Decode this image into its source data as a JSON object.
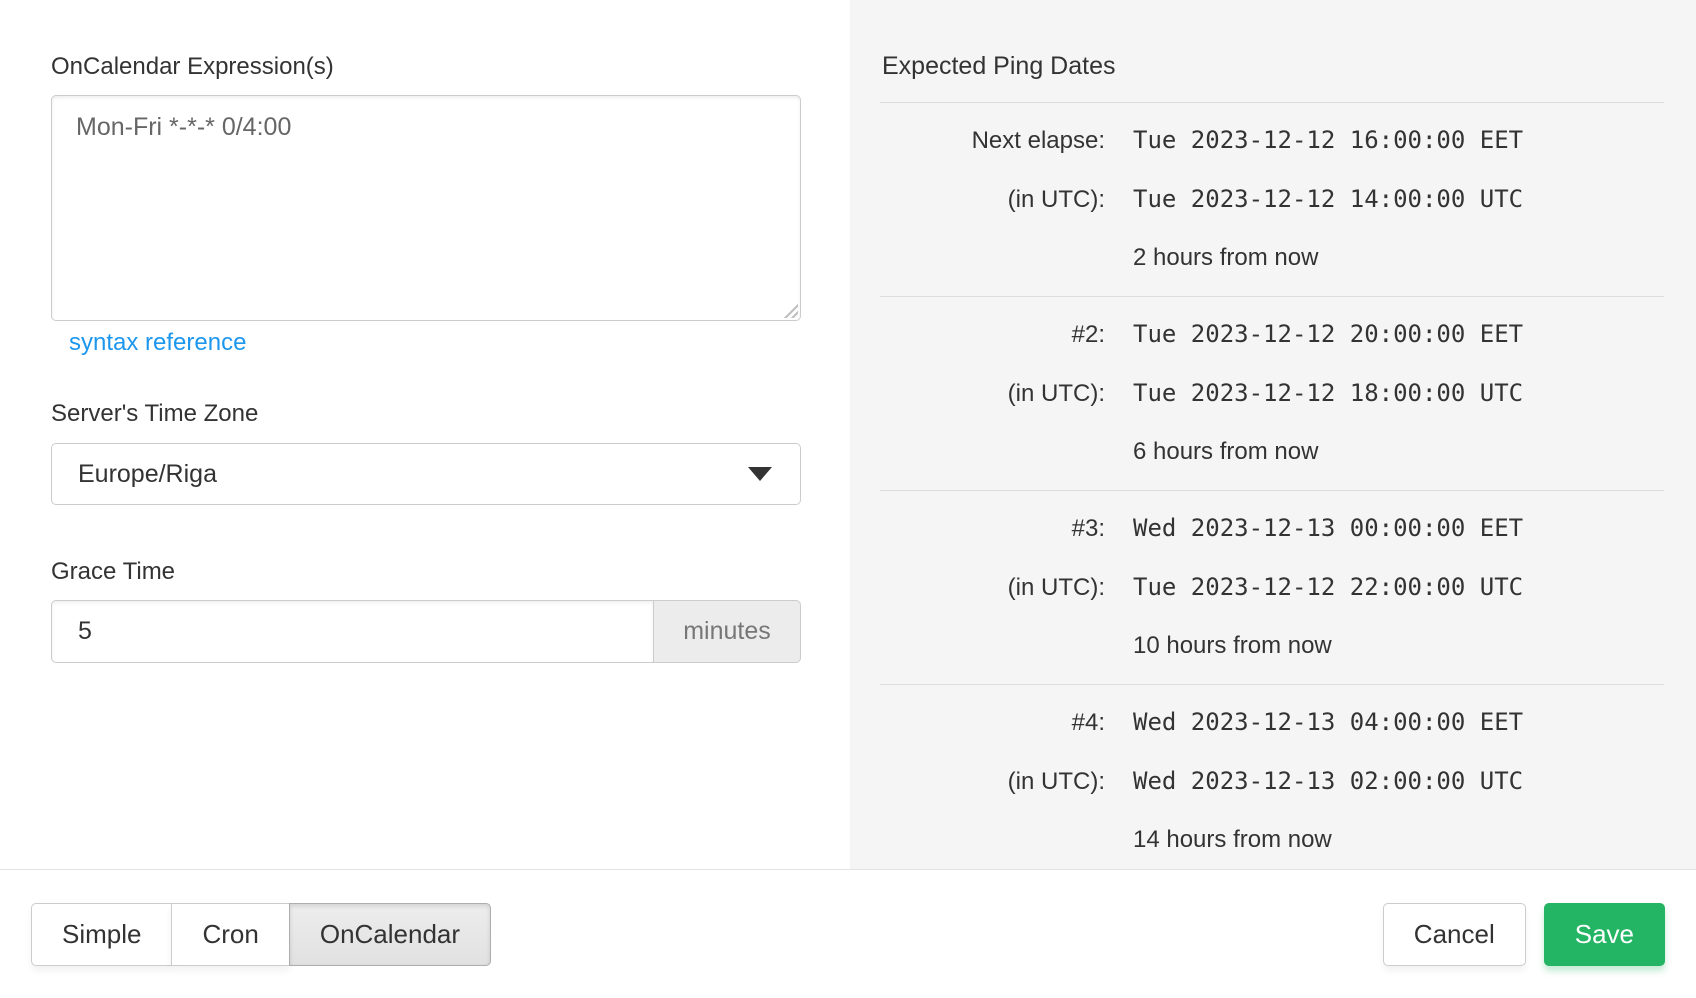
{
  "left_panel": {
    "expression_label": "OnCalendar Expression(s)",
    "expression_value": "Mon-Fri *-*-* 0/4:00",
    "syntax_reference_label": "syntax reference",
    "timezone_label": "Server's Time Zone",
    "timezone_value": "Europe/Riga",
    "grace_label": "Grace Time",
    "grace_value": "5",
    "grace_unit": "minutes"
  },
  "right_panel": {
    "title": "Expected Ping Dates",
    "rows": [
      {
        "label": "Next elapse:",
        "local_date": "Tue 2023-12-12 16:00:00 EET",
        "utc_label": "(in UTC):",
        "utc_date": "Tue 2023-12-12 14:00:00 UTC",
        "relative": "2 hours from now"
      },
      {
        "label": "#2:",
        "local_date": "Tue 2023-12-12 20:00:00 EET",
        "utc_label": "(in UTC):",
        "utc_date": "Tue 2023-12-12 18:00:00 UTC",
        "relative": "6 hours from now"
      },
      {
        "label": "#3:",
        "local_date": "Wed 2023-12-13 00:00:00 EET",
        "utc_label": "(in UTC):",
        "utc_date": "Tue 2023-12-12 22:00:00 UTC",
        "relative": "10 hours from now"
      },
      {
        "label": "#4:",
        "local_date": "Wed 2023-12-13 04:00:00 EET",
        "utc_label": "(in UTC):",
        "utc_date": "Wed 2023-12-13 02:00:00 UTC",
        "relative": "14 hours from now"
      }
    ]
  },
  "footer": {
    "mode_buttons": [
      {
        "label": "Simple",
        "active": false
      },
      {
        "label": "Cron",
        "active": false
      },
      {
        "label": "OnCalendar",
        "active": true
      }
    ],
    "cancel_label": "Cancel",
    "save_label": "Save"
  },
  "colors": {
    "save_green": "#23b464",
    "link_blue": "#1d97ee",
    "panel_gray": "#f5f5f5"
  }
}
